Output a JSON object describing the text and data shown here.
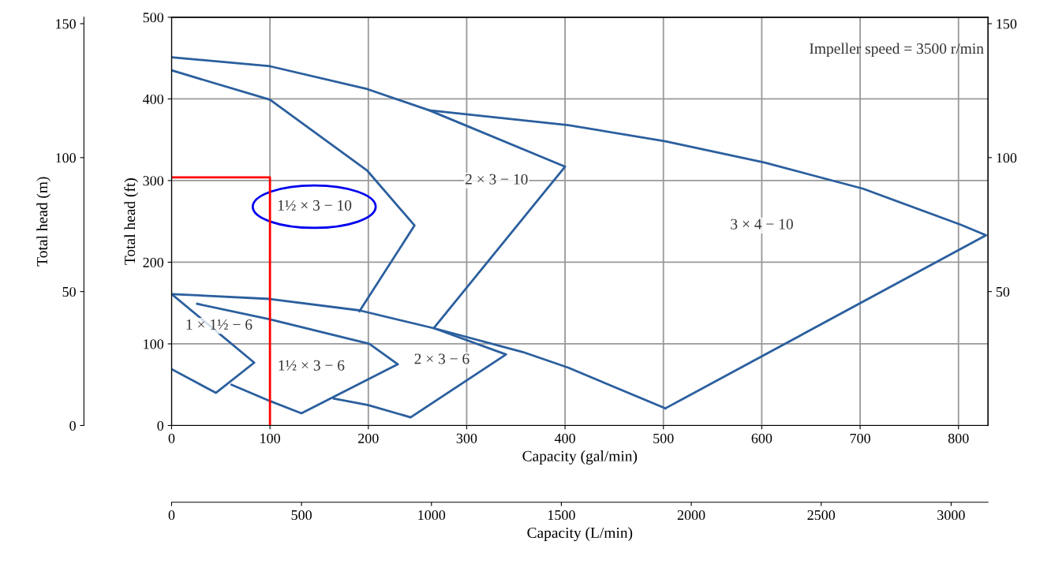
{
  "chart_data": {
    "type": "line",
    "xlabel": "Capacity (gal/min)",
    "ylabel": "Total head (ft)",
    "y3label": "Total head (m)",
    "x2label": "Capacity (L/min)",
    "xlim": [
      0,
      830
    ],
    "xticks": [
      0,
      100,
      200,
      300,
      400,
      500,
      600,
      700,
      800
    ],
    "ylim": [
      0,
      500
    ],
    "yticks": [
      0,
      100,
      200,
      300,
      400,
      500
    ],
    "y2lim": [
      0,
      152.4
    ],
    "y2ticks": [
      50,
      100,
      150
    ],
    "y3lim": [
      0,
      152.4
    ],
    "y3ticks": [
      0,
      50,
      100,
      150
    ],
    "x2lim": [
      0,
      3142
    ],
    "x2ticks": [
      0,
      500,
      1000,
      1500,
      2000,
      2500,
      3000
    ],
    "grid": true,
    "line_style": "solid",
    "series": [
      {
        "color": "#2b5f9e",
        "x": [
          0,
          100,
          199,
          262,
          403,
          502,
          603,
          703,
          802,
          828,
          502
        ],
        "values": [
          451,
          440,
          412,
          386,
          368,
          348,
          322,
          290,
          246,
          233,
          21
        ]
      },
      {
        "color": "#2b5f9e",
        "x": [
          262,
          400,
          267
        ],
        "values": [
          386,
          317,
          120
        ]
      },
      {
        "color": "#2b5f9e",
        "x": [
          0,
          100,
          199,
          247,
          191
        ],
        "values": [
          435,
          399,
          312,
          245,
          140
        ]
      },
      {
        "color": "#2b5f9e",
        "x": [
          0,
          100,
          191,
          267,
          357,
          403,
          502
        ],
        "values": [
          161,
          155,
          141,
          119,
          90,
          71,
          21
        ]
      },
      {
        "color": "#2b5f9e",
        "x": [
          267,
          340,
          243,
          200,
          165
        ],
        "values": [
          119,
          87,
          10,
          25,
          33
        ]
      },
      {
        "color": "#2b5f9e",
        "x": [
          26,
          100,
          201,
          230,
          132,
          100,
          61
        ],
        "values": [
          149,
          130,
          100,
          75,
          15,
          30,
          50
        ]
      },
      {
        "color": "#2b5f9e",
        "x": [
          0,
          84,
          45,
          0
        ],
        "values": [
          161,
          77,
          40,
          69
        ]
      },
      {
        "color": "#ff0000",
        "x": [
          0,
          100,
          100
        ],
        "values": [
          304,
          304,
          0
        ]
      }
    ],
    "annotations": [
      "Impeller speed = 3500 r/min",
      "2 × 3 − 10",
      "1½ × 3 − 10",
      "3 × 4 − 10",
      "1 × 1½ − 6",
      "1½ × 3 − 6",
      "2 × 3 − 6"
    ]
  }
}
